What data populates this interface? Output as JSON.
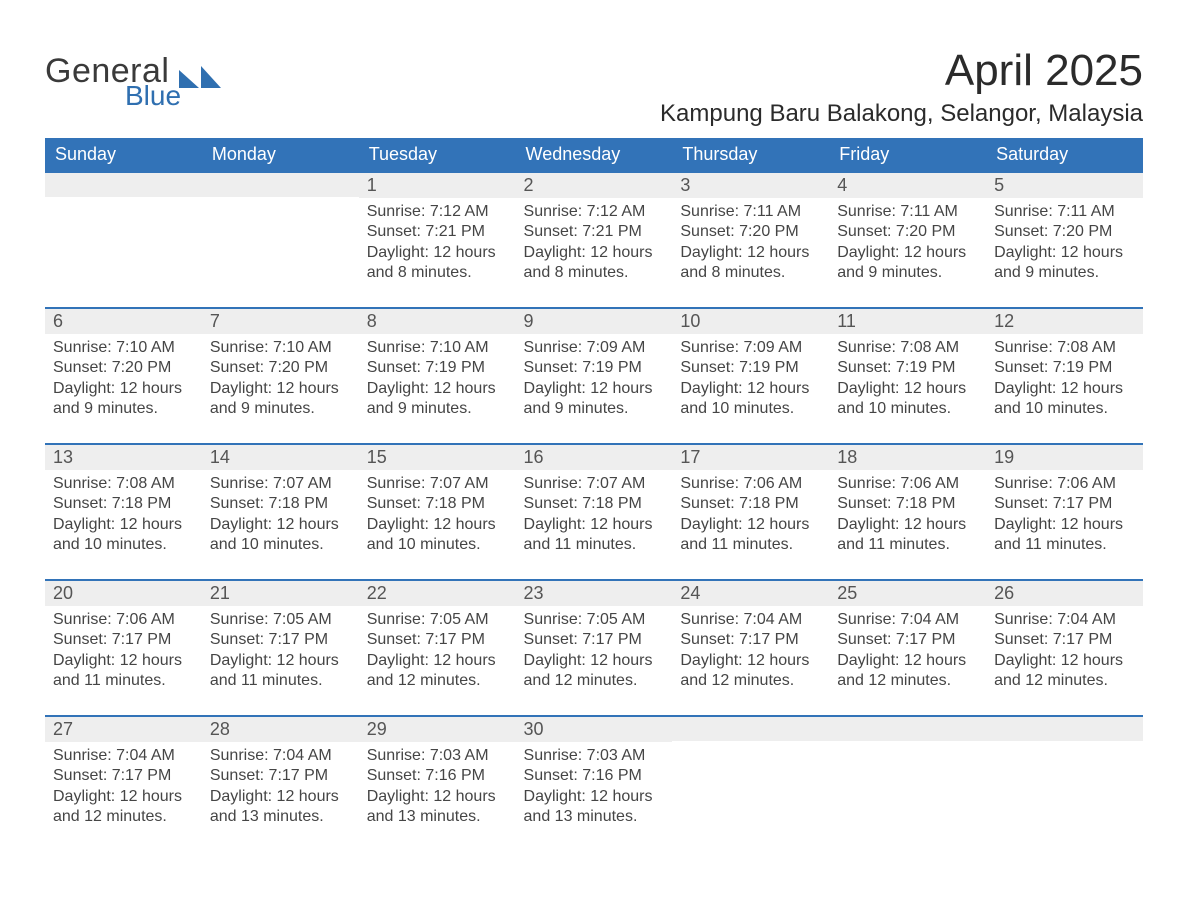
{
  "brand": {
    "word1": "General",
    "word2": "Blue",
    "word1_color": "#3a3a3a",
    "word2_color": "#2f6fb0",
    "mark_color": "#2f6fb0"
  },
  "header": {
    "month_title": "April 2025",
    "location": "Kampung Baru Balakong, Selangor, Malaysia"
  },
  "colors": {
    "header_bg": "#3273b8",
    "header_text": "#ffffff",
    "day_border": "#3273b8",
    "daynum_bg": "#eeeeee",
    "body_text": "#454545",
    "page_bg": "#ffffff"
  },
  "typography": {
    "month_title_fontsize": 44,
    "location_fontsize": 24,
    "weekday_fontsize": 18,
    "daynum_fontsize": 18,
    "body_fontsize": 16,
    "font_family": "Segoe UI / Helvetica Neue / Arial"
  },
  "calendar": {
    "weekday_labels": [
      "Sunday",
      "Monday",
      "Tuesday",
      "Wednesday",
      "Thursday",
      "Friday",
      "Saturday"
    ],
    "weeks": [
      [
        {
          "day": "",
          "sunrise": "",
          "sunset": "",
          "daylight": ""
        },
        {
          "day": "",
          "sunrise": "",
          "sunset": "",
          "daylight": ""
        },
        {
          "day": "1",
          "sunrise": "Sunrise: 7:12 AM",
          "sunset": "Sunset: 7:21 PM",
          "daylight": "Daylight: 12 hours and 8 minutes."
        },
        {
          "day": "2",
          "sunrise": "Sunrise: 7:12 AM",
          "sunset": "Sunset: 7:21 PM",
          "daylight": "Daylight: 12 hours and 8 minutes."
        },
        {
          "day": "3",
          "sunrise": "Sunrise: 7:11 AM",
          "sunset": "Sunset: 7:20 PM",
          "daylight": "Daylight: 12 hours and 8 minutes."
        },
        {
          "day": "4",
          "sunrise": "Sunrise: 7:11 AM",
          "sunset": "Sunset: 7:20 PM",
          "daylight": "Daylight: 12 hours and 9 minutes."
        },
        {
          "day": "5",
          "sunrise": "Sunrise: 7:11 AM",
          "sunset": "Sunset: 7:20 PM",
          "daylight": "Daylight: 12 hours and 9 minutes."
        }
      ],
      [
        {
          "day": "6",
          "sunrise": "Sunrise: 7:10 AM",
          "sunset": "Sunset: 7:20 PM",
          "daylight": "Daylight: 12 hours and 9 minutes."
        },
        {
          "day": "7",
          "sunrise": "Sunrise: 7:10 AM",
          "sunset": "Sunset: 7:20 PM",
          "daylight": "Daylight: 12 hours and 9 minutes."
        },
        {
          "day": "8",
          "sunrise": "Sunrise: 7:10 AM",
          "sunset": "Sunset: 7:19 PM",
          "daylight": "Daylight: 12 hours and 9 minutes."
        },
        {
          "day": "9",
          "sunrise": "Sunrise: 7:09 AM",
          "sunset": "Sunset: 7:19 PM",
          "daylight": "Daylight: 12 hours and 9 minutes."
        },
        {
          "day": "10",
          "sunrise": "Sunrise: 7:09 AM",
          "sunset": "Sunset: 7:19 PM",
          "daylight": "Daylight: 12 hours and 10 minutes."
        },
        {
          "day": "11",
          "sunrise": "Sunrise: 7:08 AM",
          "sunset": "Sunset: 7:19 PM",
          "daylight": "Daylight: 12 hours and 10 minutes."
        },
        {
          "day": "12",
          "sunrise": "Sunrise: 7:08 AM",
          "sunset": "Sunset: 7:19 PM",
          "daylight": "Daylight: 12 hours and 10 minutes."
        }
      ],
      [
        {
          "day": "13",
          "sunrise": "Sunrise: 7:08 AM",
          "sunset": "Sunset: 7:18 PM",
          "daylight": "Daylight: 12 hours and 10 minutes."
        },
        {
          "day": "14",
          "sunrise": "Sunrise: 7:07 AM",
          "sunset": "Sunset: 7:18 PM",
          "daylight": "Daylight: 12 hours and 10 minutes."
        },
        {
          "day": "15",
          "sunrise": "Sunrise: 7:07 AM",
          "sunset": "Sunset: 7:18 PM",
          "daylight": "Daylight: 12 hours and 10 minutes."
        },
        {
          "day": "16",
          "sunrise": "Sunrise: 7:07 AM",
          "sunset": "Sunset: 7:18 PM",
          "daylight": "Daylight: 12 hours and 11 minutes."
        },
        {
          "day": "17",
          "sunrise": "Sunrise: 7:06 AM",
          "sunset": "Sunset: 7:18 PM",
          "daylight": "Daylight: 12 hours and 11 minutes."
        },
        {
          "day": "18",
          "sunrise": "Sunrise: 7:06 AM",
          "sunset": "Sunset: 7:18 PM",
          "daylight": "Daylight: 12 hours and 11 minutes."
        },
        {
          "day": "19",
          "sunrise": "Sunrise: 7:06 AM",
          "sunset": "Sunset: 7:17 PM",
          "daylight": "Daylight: 12 hours and 11 minutes."
        }
      ],
      [
        {
          "day": "20",
          "sunrise": "Sunrise: 7:06 AM",
          "sunset": "Sunset: 7:17 PM",
          "daylight": "Daylight: 12 hours and 11 minutes."
        },
        {
          "day": "21",
          "sunrise": "Sunrise: 7:05 AM",
          "sunset": "Sunset: 7:17 PM",
          "daylight": "Daylight: 12 hours and 11 minutes."
        },
        {
          "day": "22",
          "sunrise": "Sunrise: 7:05 AM",
          "sunset": "Sunset: 7:17 PM",
          "daylight": "Daylight: 12 hours and 12 minutes."
        },
        {
          "day": "23",
          "sunrise": "Sunrise: 7:05 AM",
          "sunset": "Sunset: 7:17 PM",
          "daylight": "Daylight: 12 hours and 12 minutes."
        },
        {
          "day": "24",
          "sunrise": "Sunrise: 7:04 AM",
          "sunset": "Sunset: 7:17 PM",
          "daylight": "Daylight: 12 hours and 12 minutes."
        },
        {
          "day": "25",
          "sunrise": "Sunrise: 7:04 AM",
          "sunset": "Sunset: 7:17 PM",
          "daylight": "Daylight: 12 hours and 12 minutes."
        },
        {
          "day": "26",
          "sunrise": "Sunrise: 7:04 AM",
          "sunset": "Sunset: 7:17 PM",
          "daylight": "Daylight: 12 hours and 12 minutes."
        }
      ],
      [
        {
          "day": "27",
          "sunrise": "Sunrise: 7:04 AM",
          "sunset": "Sunset: 7:17 PM",
          "daylight": "Daylight: 12 hours and 12 minutes."
        },
        {
          "day": "28",
          "sunrise": "Sunrise: 7:04 AM",
          "sunset": "Sunset: 7:17 PM",
          "daylight": "Daylight: 12 hours and 13 minutes."
        },
        {
          "day": "29",
          "sunrise": "Sunrise: 7:03 AM",
          "sunset": "Sunset: 7:16 PM",
          "daylight": "Daylight: 12 hours and 13 minutes."
        },
        {
          "day": "30",
          "sunrise": "Sunrise: 7:03 AM",
          "sunset": "Sunset: 7:16 PM",
          "daylight": "Daylight: 12 hours and 13 minutes."
        },
        {
          "day": "",
          "sunrise": "",
          "sunset": "",
          "daylight": ""
        },
        {
          "day": "",
          "sunrise": "",
          "sunset": "",
          "daylight": ""
        },
        {
          "day": "",
          "sunrise": "",
          "sunset": "",
          "daylight": ""
        }
      ]
    ]
  }
}
